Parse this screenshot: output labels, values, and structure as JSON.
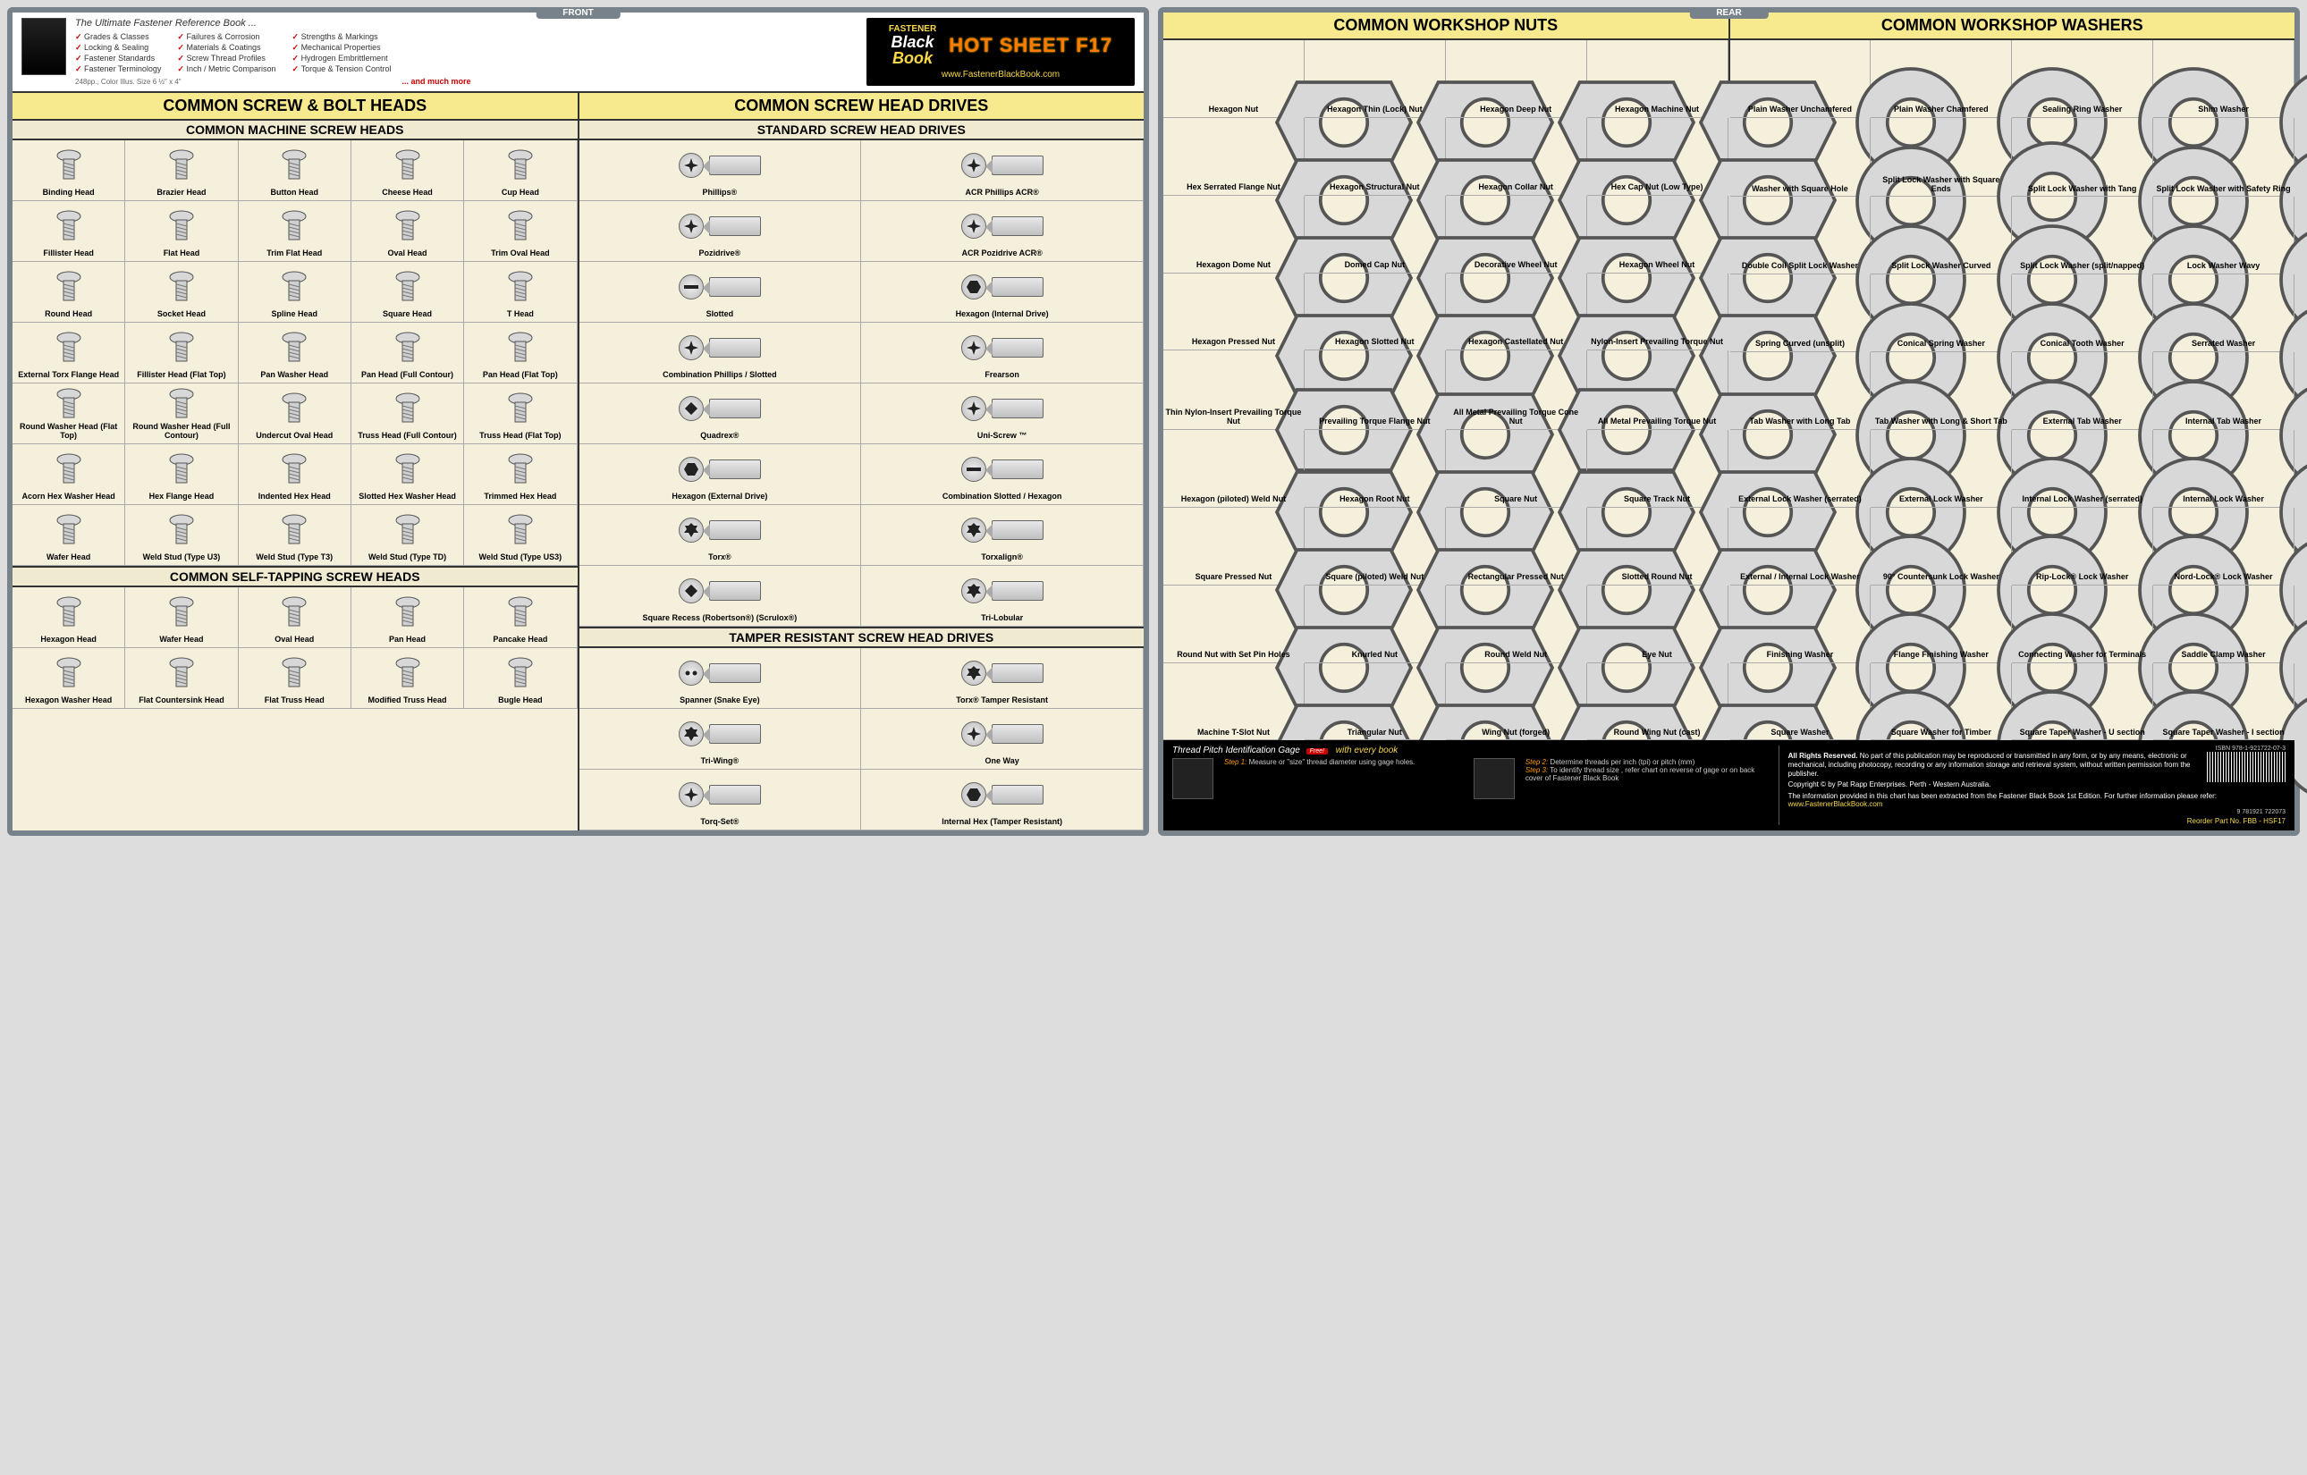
{
  "tabs": {
    "front": "FRONT",
    "rear": "REAR"
  },
  "header": {
    "tagline": "The Ultimate Fastener Reference Book ...",
    "features_col1": [
      "Grades & Classes",
      "Locking & Sealing",
      "Fastener Standards",
      "Fastener Terminology"
    ],
    "features_col2": [
      "Failures & Corrosion",
      "Materials & Coatings",
      "Screw Thread Profiles",
      "Inch / Metric Comparison"
    ],
    "features_col3": [
      "Strengths & Markings",
      "Mechanical Properties",
      "Hydrogen Embrittlement",
      "Torque & Tension Control"
    ],
    "size_note": "248pp., Color Illus. Size 6 ½\" x 4\"",
    "much_more": "... and much more",
    "logo_l1": "FASTENER",
    "logo_l2": "Black",
    "logo_l3": "Book",
    "hotsheet": "HOT SHEET F17",
    "website": "www.FastenerBlackBook.com"
  },
  "front": {
    "title_left": "COMMON SCREW & BOLT HEADS",
    "title_right": "COMMON SCREW HEAD DRIVES",
    "sub_machine": "COMMON MACHINE SCREW HEADS",
    "sub_selftap": "COMMON SELF-TAPPING SCREW HEADS",
    "sub_standard": "STANDARD SCREW HEAD DRIVES",
    "sub_tamper": "TAMPER RESISTANT SCREW HEAD DRIVES",
    "machine_heads": [
      "Binding Head",
      "Brazier Head",
      "Button Head",
      "Cheese Head",
      "Cup Head",
      "Fillister Head",
      "Flat Head",
      "Trim Flat Head",
      "Oval Head",
      "Trim Oval Head",
      "Round Head",
      "Socket Head",
      "Spline Head",
      "Square Head",
      "T Head",
      "External Torx Flange Head",
      "Fillister Head (Flat Top)",
      "Pan Washer Head",
      "Pan Head (Full Contour)",
      "Pan Head (Flat Top)",
      "Round Washer Head (Flat Top)",
      "Round Washer Head (Full Contour)",
      "Undercut Oval Head",
      "Truss Head (Full Contour)",
      "Truss Head (Flat Top)",
      "Acorn Hex Washer Head",
      "Hex Flange Head",
      "Indented Hex Head",
      "Slotted Hex Washer Head",
      "Trimmed Hex Head",
      "Wafer Head",
      "Weld Stud (Type U3)",
      "Weld Stud (Type T3)",
      "Weld Stud (Type TD)",
      "Weld Stud (Type US3)"
    ],
    "selftap_heads": [
      "Hexagon Head",
      "Wafer Head",
      "Oval Head",
      "Pan Head",
      "Pancake Head",
      "Hexagon Washer Head",
      "Flat Countersink Head",
      "Flat Truss Head",
      "Modified Truss Head",
      "Bugle Head"
    ],
    "standard_drives": [
      {
        "l": "Phillips®",
        "r": "ACR Phillips   ACR®"
      },
      {
        "l": "Pozidrive®",
        "r": "ACR Pozidrive   ACR®"
      },
      {
        "l": "Slotted",
        "r": "Hexagon (Internal Drive)"
      },
      {
        "l": "Combination Phillips / Slotted",
        "r": "Frearson"
      },
      {
        "l": "Quadrex®",
        "r": "Uni-Screw ™"
      },
      {
        "l": "Hexagon (External Drive)",
        "r": "Combination Slotted / Hexagon"
      },
      {
        "l": "Torx®",
        "r": "Torxalign®"
      },
      {
        "l": "Square Recess (Robertson®) (Scrulox®)",
        "r": "Tri-Lobular"
      }
    ],
    "tamper_drives": [
      {
        "l": "Spanner (Snake Eye)",
        "r": "Torx® Tamper Resistant"
      },
      {
        "l": "Tri-Wing®",
        "r": "One Way"
      },
      {
        "l": "Torq-Set®",
        "r": "Internal Hex (Tamper Resistant)"
      }
    ]
  },
  "rear": {
    "title_nuts": "COMMON WORKSHOP NUTS",
    "title_washers": "COMMON WORKSHOP WASHERS",
    "nuts": [
      "Hexagon Nut",
      "Hexagon Thin (Lock) Nut",
      "Hexagon Deep Nut",
      "Hexagon Machine Nut",
      "Hex Serrated Flange Nut",
      "Hexagon Structural Nut",
      "Hexagon Collar Nut",
      "Hex Cap Nut (Low Type)",
      "Hexagon Dome Nut",
      "Domed Cap Nut",
      "Decorative Wheel Nut",
      "Hexagon Wheel Nut",
      "Hexagon Pressed Nut",
      "Hexagon Slotted Nut",
      "Hexagon Castellated Nut",
      "Nylon-Insert Prevailing Torque Nut",
      "Thin Nylon-Insert Prevailing Torque Nut",
      "Prevailing Torque Flange Nut",
      "All Metal Prevailing Torque Cone Nut",
      "All Metal Prevailing Torque Nut",
      "Hexagon (piloted) Weld Nut",
      "Hexagon Root Nut",
      "Square Nut",
      "Square Track Nut",
      "Square Pressed Nut",
      "Square (piloted) Weld Nut",
      "Rectangular Pressed Nut",
      "Slotted Round Nut",
      "Round Nut with Set Pin Holes",
      "Knurled Nut",
      "Round Weld Nut",
      "Eye Nut",
      "Machine T-Slot Nut",
      "Triangular Nut",
      "Wing Nut (forged)",
      "Round Wing Nut (cast)"
    ],
    "washers": [
      "Plain Washer Unchamfered",
      "Plain Washer Chamfered",
      "Sealing Ring Washer",
      "Shim Washer",
      "Washer with Square Hole",
      "Split Lock Washer with Square Ends",
      "Split Lock Washer with Tang",
      "Split Lock Washer with Safety Ring",
      "Double Coil Split Lock Washer",
      "Split Lock Washer Curved",
      "Split Lock Washer (split/napped)",
      "Lock Washer Wavy",
      "Spring Curved (unsplit)",
      "Conical Spring Washer",
      "Conical Tooth Washer",
      "Serrated Washer",
      "Tab Washer with Long Tab",
      "Tab Washer with Long & Short Tab",
      "External Tab Washer",
      "Internal Tab Washer",
      "External Lock Washer (serrated)",
      "External Lock Washer",
      "Internal Lock Washer (serrated)",
      "Internal Lock Washer",
      "External / Internal Lock Washer",
      "90° Countersunk Lock Washer",
      "Rip-Lock® Lock Washer",
      "Nord-Lock® Lock Washer",
      "Finishing Washer",
      "Flange Finishing Washer",
      "Connecting Washer for Terminals",
      "Saddle Clamp Washer",
      "Square Washer",
      "Square Washer for Timber",
      "Square Taper Washer - U section",
      "Square Taper Washer - I section"
    ]
  },
  "rear_footer": {
    "gage_title": "Thread Pitch Identification Gage",
    "with_book": "with every book",
    "step1": "Step 1:",
    "step1_text": "Measure or \"size\" thread diameter using gage holes.",
    "step2": "Step 2:",
    "step2_text": "Determine threads per inch (tpi) or pitch (mm)",
    "step3": "Step 3:",
    "step3_text": "To identify thread size , refer chart on reverse of gage or on back cover of Fastener Black Book",
    "rights_title": "All Rights Reserved.",
    "rights_text": "No part of this publication may be reproduced or transmitted in any form, or by any means, electronic or mechanical, including photocopy, recording or any information storage and retrieval system, without written permission from the publisher.",
    "copyright": "Copyright © by Pat Rapp Enterprises. Perth - Western Australia.",
    "info_text": "The information provided in this chart has been extracted from the Fastener Black Book 1st Edition.   For further information please refer:",
    "info_url": "www.FastenerBlackBook.com",
    "isbn": "ISBN  978-1-921722-07-3",
    "isbn_num": "9 781921 722073",
    "reorder": "Reorder Part No. FBB - HSF17"
  },
  "colors": {
    "frame": "#78828a",
    "page_bg": "#f5f0dc",
    "title_bg": "#f7e98e",
    "accent": "#ff7a00"
  }
}
